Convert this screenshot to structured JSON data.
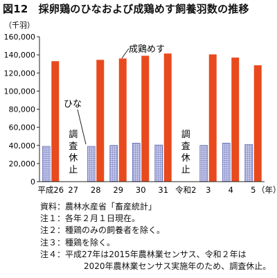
{
  "figure": {
    "title": "図12　採卵鶏のひなおよび成鶏めす飼養羽数の推移",
    "y_unit": "（千羽）",
    "x_unit": "（年）"
  },
  "chart_data": {
    "type": "bar",
    "categories": [
      "平成26",
      "27",
      "28",
      "29",
      "30",
      "31",
      "令和2",
      "3",
      "4",
      "5"
    ],
    "series": [
      {
        "name": "ひな",
        "values": [
          39000,
          null,
          39000,
          40000,
          42500,
          40500,
          null,
          40000,
          42500,
          41000
        ],
        "color": "#a3a9d6",
        "pattern": "grid"
      },
      {
        "name": "成鶏めす",
        "values": [
          133000,
          null,
          134500,
          136000,
          139000,
          141500,
          null,
          140500,
          137000,
          128500
        ],
        "color": "#e84a1e"
      }
    ],
    "y_ticks": [
      0,
      20000,
      40000,
      60000,
      80000,
      100000,
      120000,
      140000,
      160000
    ],
    "y_tick_labels": [
      "0",
      "20,000",
      "40,000",
      "60,000",
      "80,000",
      "100,000",
      "120,000",
      "140,000",
      "160,000"
    ],
    "ylim": [
      0,
      160000
    ],
    "grid": false,
    "annotations": [
      {
        "category": "27",
        "text": "調査休止"
      },
      {
        "category": "令和2",
        "text": "調査休止"
      }
    ]
  },
  "notes": [
    "資料：農林水産省「畜産統計」",
    "注１：各年２月１日現在。",
    "注２：種鶏のみの飼養者を除く。",
    "注３：種鶏を除く。",
    "注４：平成27年は2015年農林業センサス、令和２年は",
    "2020年農林業センサス実施年のため、調査休止。"
  ]
}
